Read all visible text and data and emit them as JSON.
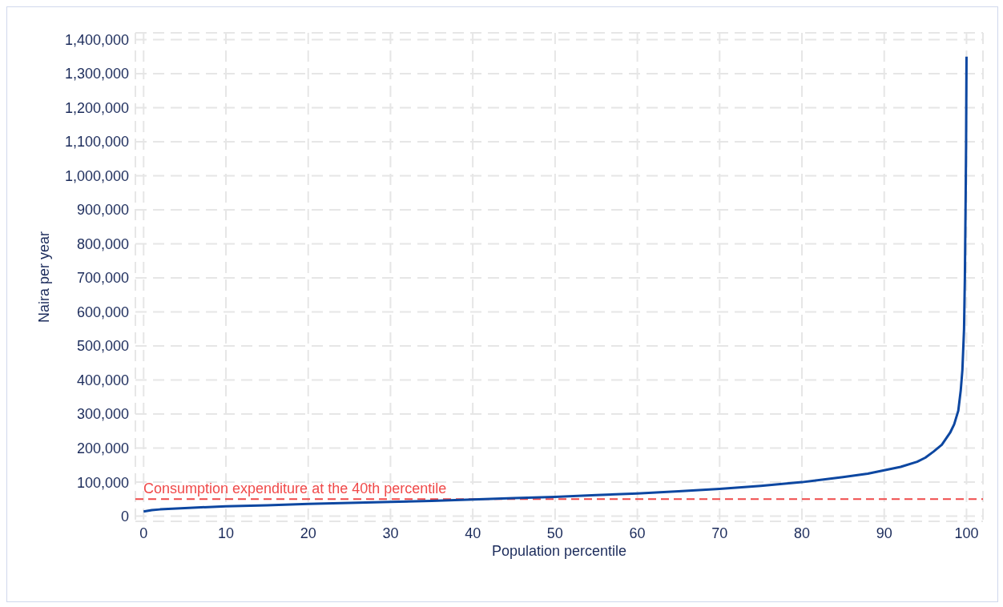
{
  "chart_data": {
    "type": "line",
    "xlabel": "Population percentile",
    "ylabel": "Naira per year",
    "x": [
      0,
      1,
      2,
      5,
      10,
      15,
      20,
      25,
      30,
      35,
      40,
      45,
      50,
      55,
      60,
      65,
      70,
      75,
      80,
      85,
      88,
      90,
      92,
      94,
      95,
      96,
      97,
      98,
      98.5,
      99,
      99.3,
      99.5,
      99.7,
      99.8,
      99.9,
      99.95,
      100
    ],
    "series": [
      {
        "color": "#0d47a1",
        "values": [
          14000,
          18000,
          20000,
          24000,
          29000,
          32000,
          36000,
          39000,
          42000,
          45000,
          49000,
          53000,
          57000,
          62000,
          67000,
          73000,
          80000,
          89000,
          100000,
          115000,
          125000,
          135000,
          145000,
          160000,
          172000,
          190000,
          210000,
          245000,
          270000,
          310000,
          370000,
          430000,
          550000,
          700000,
          950000,
          1100000,
          1350000
        ]
      }
    ],
    "xlim": [
      -1,
      102
    ],
    "xticks": [
      0,
      10,
      20,
      30,
      40,
      50,
      60,
      70,
      80,
      90,
      100
    ],
    "ylim": [
      -15000,
      1420000
    ],
    "yticks": [
      0,
      {
        "value": 100000,
        "label": "100,000"
      },
      {
        "value": 200000,
        "label": "200,000"
      },
      {
        "value": 300000,
        "label": "300,000"
      },
      {
        "value": 400000,
        "label": "400,000"
      },
      {
        "value": 500000,
        "label": "500,000"
      },
      {
        "value": 600000,
        "label": "600,000"
      },
      {
        "value": 700000,
        "label": "700,000"
      },
      {
        "value": 800000,
        "label": "800,000"
      },
      {
        "value": 900000,
        "label": "900,000"
      },
      {
        "value": 1000000,
        "label": "1,000,000"
      },
      {
        "value": 1100000,
        "label": "1,100,000"
      },
      {
        "value": 1200000,
        "label": "1,200,000"
      },
      {
        "value": 1300000,
        "label": "1,300,000"
      },
      {
        "value": 1400000,
        "label": "1,400,000"
      }
    ],
    "ref_lines": [
      {
        "axis": "y",
        "value": 50000,
        "label": "Consumption expenditure at the 40th percentile",
        "color": "#f04a4a",
        "line_style": "dashed"
      }
    ],
    "grid": true,
    "marker": "none",
    "line_style": "solid"
  }
}
